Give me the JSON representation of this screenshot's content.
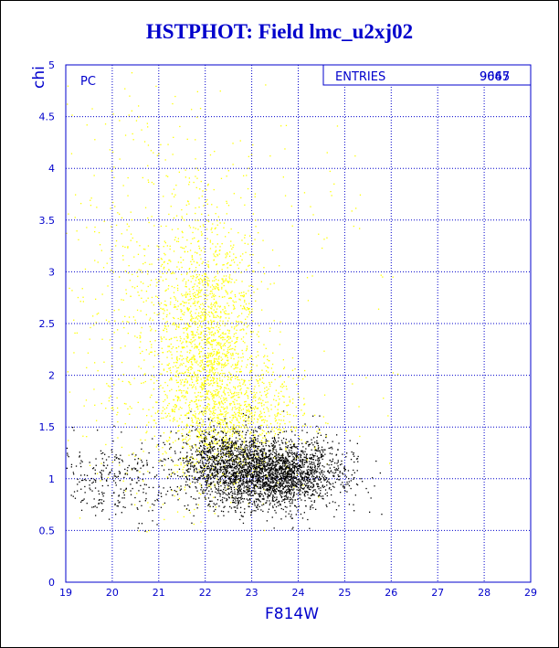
{
  "title": "HSTPHOT: Field lmc_u2xj02",
  "panel_label": "PC",
  "stats": {
    "label": "ENTRIES",
    "value": "9667",
    "overprinted_value": "9045"
  },
  "colors": {
    "accent": "#0000cc",
    "grid": "#0000cc",
    "selected_points": "#000000",
    "rejected_points": "#ffff00"
  },
  "chart_data": {
    "type": "scatter",
    "title": "HSTPHOT: Field lmc_u2xj02",
    "xlabel": "F814W",
    "ylabel": "chi",
    "xlim": [
      19,
      29
    ],
    "ylim": [
      0,
      5
    ],
    "xticks": [
      "19",
      "20",
      "21",
      "22",
      "23",
      "24",
      "25",
      "26",
      "27",
      "28",
      "29"
    ],
    "yticks": [
      "0",
      "0.5",
      "1",
      "1.5",
      "2",
      "2.5",
      "3",
      "3.5",
      "4",
      "4.5",
      "5"
    ],
    "grid": true,
    "series": [
      {
        "color": "#ffff00",
        "count": 9667,
        "density_clusters": [
          {
            "x": 22.0,
            "y": 2.3,
            "sx": 0.55,
            "sy": 0.6,
            "weight": 0.55
          },
          {
            "x": 22.8,
            "y": 1.6,
            "sx": 0.7,
            "sy": 0.3,
            "weight": 0.25
          },
          {
            "x": 20.5,
            "y": 2.5,
            "sx": 1.0,
            "sy": 1.1,
            "weight": 0.15
          },
          {
            "x": 23.0,
            "y": 3.0,
            "sx": 2.0,
            "sy": 1.2,
            "weight": 0.05
          }
        ]
      },
      {
        "color": "#000000",
        "count": 9045,
        "density_clusters": [
          {
            "x": 23.4,
            "y": 1.05,
            "sx": 0.75,
            "sy": 0.17,
            "weight": 0.75
          },
          {
            "x": 22.3,
            "y": 1.2,
            "sx": 0.5,
            "sy": 0.15,
            "weight": 0.15
          },
          {
            "x": 20.2,
            "y": 1.0,
            "sx": 0.7,
            "sy": 0.2,
            "weight": 0.1
          }
        ]
      }
    ]
  }
}
